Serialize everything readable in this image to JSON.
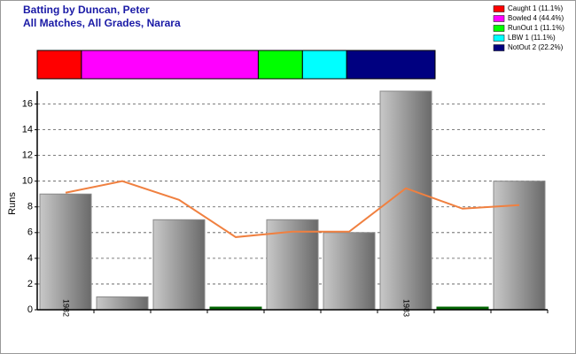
{
  "chart_data": {
    "type": "bar",
    "title": "Batting by Duncan, Peter",
    "subtitle": "All Matches, All Grades, Narara",
    "y_label": "Runs",
    "summary": [
      {
        "name": "Caught 1 (11.1%)",
        "count": 1,
        "color": "#ff0000"
      },
      {
        "name": "Bowled 4 (44.4%)",
        "count": 4,
        "color": "#ff00ff"
      },
      {
        "name": "RunOut 1 (11.1%)",
        "count": 1,
        "color": "#00ff00"
      },
      {
        "name": "LBW 1 (11.1%)",
        "count": 1,
        "color": "#00ffff"
      },
      {
        "name": "NotOut 2 (22.2%)",
        "count": 2,
        "color": "#000080"
      }
    ],
    "categories": [
      "1982",
      null,
      null,
      null,
      null,
      null,
      "1983",
      null,
      null
    ],
    "values": [
      9,
      1,
      7,
      0,
      7,
      6,
      17,
      0,
      10
    ],
    "colors": [
      "#a0a0a0",
      "#a0a0a0",
      "#a0a0a0",
      "#006400",
      "#a0a0a0",
      "#a0a0a0",
      "#a0a0a0",
      "#006400",
      "#a0a0a0"
    ],
    "line": {
      "color": "#f08040",
      "values": [
        9.1,
        10,
        8.55,
        5.65,
        6.07,
        6.07,
        9.45,
        7.86,
        8.14
      ]
    },
    "ylim": [
      0,
      17
    ],
    "yticks": [
      0,
      2,
      4,
      6,
      8,
      10,
      12,
      14,
      16
    ],
    "grid": true
  }
}
